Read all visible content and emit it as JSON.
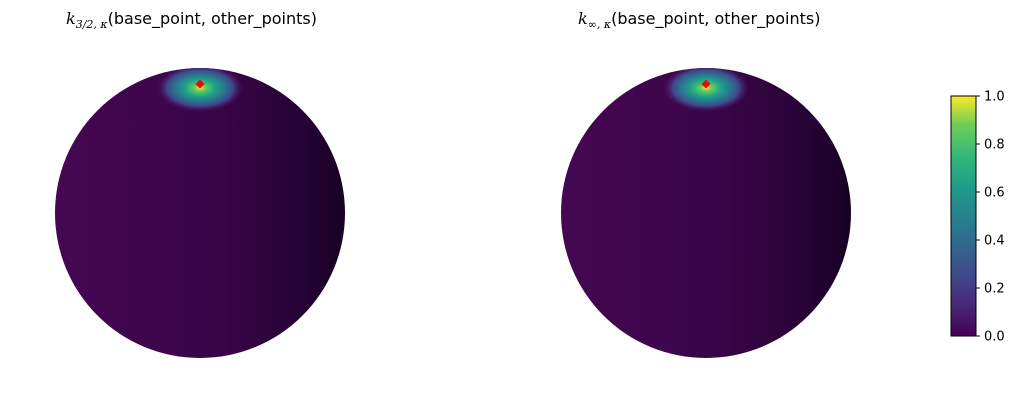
{
  "chart_data": [
    {
      "type": "heatmap",
      "subtype": "sphere-surface",
      "title": {
        "symbol": "k",
        "subscript": "3/2, κ",
        "text": "(base_point, other_points)"
      },
      "base_point_marker": {
        "shape": "diamond",
        "color": "#ff0000"
      },
      "peak_value": 1.0,
      "background_value": 0.0,
      "spread": "narrow"
    },
    {
      "type": "heatmap",
      "subtype": "sphere-surface",
      "title": {
        "symbol": "k",
        "subscript": "∞, κ",
        "text": "(base_point, other_points)"
      },
      "base_point_marker": {
        "shape": "diamond",
        "color": "#ff0000"
      },
      "peak_value": 1.0,
      "background_value": 0.0,
      "spread": "narrow"
    }
  ],
  "colorbar": {
    "colormap": "viridis",
    "range": [
      0.0,
      1.0
    ],
    "ticks": [
      "0.0",
      "0.2",
      "0.4",
      "0.6",
      "0.8",
      "1.0"
    ],
    "tick_values": [
      0.0,
      0.2,
      0.4,
      0.6,
      0.8,
      1.0
    ]
  }
}
